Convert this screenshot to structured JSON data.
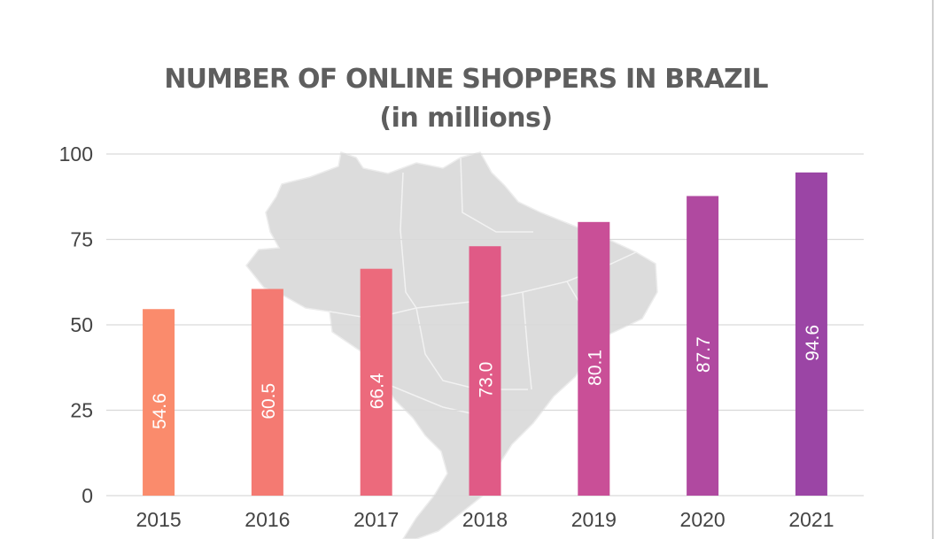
{
  "chart_data": {
    "type": "bar",
    "title": "NUMBER OF ONLINE SHOPPERS IN BRAZIL",
    "subtitle": "(in millions)",
    "xlabel": "",
    "ylabel": "",
    "categories": [
      "2015",
      "2016",
      "2017",
      "2018",
      "2019",
      "2020",
      "2021"
    ],
    "values": [
      54.6,
      60.5,
      66.4,
      73.0,
      80.1,
      87.7,
      94.6
    ],
    "data_labels": [
      "54.6",
      "60.5",
      "66.4",
      "73.0",
      "80.1",
      "87.7",
      "94.6"
    ],
    "ylim": [
      0,
      100
    ],
    "yticks": [
      "0",
      "25",
      "50",
      "75",
      "100"
    ],
    "grid": true,
    "legend": "none",
    "bar_colors": [
      "#fa8b6c",
      "#f47a72",
      "#ec6a7c",
      "#e05a86",
      "#c94f97",
      "#b049a0",
      "#9b45a5"
    ],
    "grid_color": "#d9d9d9",
    "title_color": "#5e5e5e",
    "background_image": "brazil-map-icon"
  }
}
